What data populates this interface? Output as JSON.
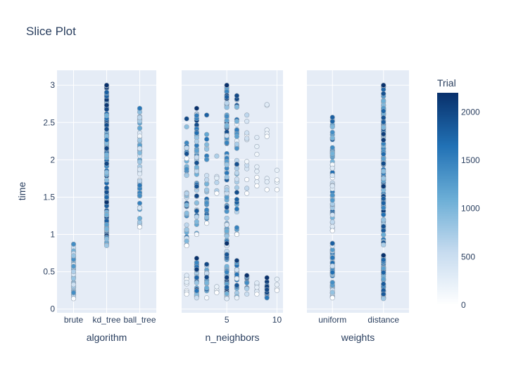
{
  "chart_data": {
    "type": "scatter",
    "title": "Slice Plot",
    "ylabel": "time",
    "ylim": [
      -0.05,
      3.2
    ],
    "yticks": [
      0,
      0.5,
      1,
      1.5,
      2,
      2.5,
      3
    ],
    "colorbar": {
      "title": "Trial",
      "min": 0,
      "max": 2200,
      "ticks": [
        0,
        500,
        1000,
        1500,
        2000
      ],
      "colorscale": [
        "#ffffff",
        "#c6dbef",
        "#6baed6",
        "#2171b5",
        "#08306b"
      ]
    },
    "panels": [
      {
        "xlabel": "algorithm",
        "x_type": "category",
        "categories": [
          "brute",
          "kd_tree",
          "ball_tree"
        ],
        "clusters": [
          {
            "x": "brute",
            "y_min": 0.14,
            "y_max": 0.87,
            "trial_min": 50,
            "trial_max": 1400,
            "count": 60
          },
          {
            "x": "kd_tree",
            "y_min": 0.85,
            "y_max": 3.0,
            "trial_min": 800,
            "trial_max": 2200,
            "count": 150
          },
          {
            "x": "ball_tree",
            "y_min": 1.1,
            "y_max": 2.69,
            "trial_min": 0,
            "trial_max": 1600,
            "count": 60
          }
        ]
      },
      {
        "xlabel": "n_neighbors",
        "x_type": "linear",
        "xlim": [
          0.5,
          10.6
        ],
        "xticks": [
          5,
          10
        ],
        "clusters": [
          {
            "x": 1,
            "y_min": 0.85,
            "y_max": 2.55,
            "trial_min": 0,
            "trial_max": 2000,
            "count": 45
          },
          {
            "x": 1,
            "y_min": 0.2,
            "y_max": 0.45,
            "trial_min": 0,
            "trial_max": 300,
            "count": 6
          },
          {
            "x": 2,
            "y_min": 1.0,
            "y_max": 2.69,
            "trial_min": 100,
            "trial_max": 2200,
            "count": 50
          },
          {
            "x": 2,
            "y_min": 0.15,
            "y_max": 0.68,
            "trial_min": 500,
            "trial_max": 2200,
            "count": 30
          },
          {
            "x": 3,
            "y_min": 1.15,
            "y_max": 2.6,
            "trial_min": 0,
            "trial_max": 1800,
            "count": 25
          },
          {
            "x": 3,
            "y_min": 0.15,
            "y_max": 0.6,
            "trial_min": 100,
            "trial_max": 2000,
            "count": 20
          },
          {
            "x": 4,
            "y_min": 1.55,
            "y_max": 2.05,
            "trial_min": 0,
            "trial_max": 700,
            "count": 4
          },
          {
            "x": 4,
            "y_min": 0.22,
            "y_max": 0.3,
            "trial_min": 0,
            "trial_max": 200,
            "count": 2
          },
          {
            "x": 5,
            "y_min": 0.85,
            "y_max": 3.0,
            "trial_min": 300,
            "trial_max": 2200,
            "count": 90
          },
          {
            "x": 5,
            "y_min": 0.14,
            "y_max": 0.88,
            "trial_min": 300,
            "trial_max": 2200,
            "count": 45
          },
          {
            "x": 6,
            "y_min": 1.0,
            "y_max": 2.86,
            "trial_min": 0,
            "trial_max": 2000,
            "count": 40
          },
          {
            "x": 6,
            "y_min": 0.15,
            "y_max": 0.65,
            "trial_min": 200,
            "trial_max": 2100,
            "count": 25
          },
          {
            "x": 7,
            "y_min": 1.55,
            "y_max": 2.6,
            "trial_min": 0,
            "trial_max": 600,
            "count": 10
          },
          {
            "x": 7,
            "y_min": 0.2,
            "y_max": 0.45,
            "trial_min": 500,
            "trial_max": 2200,
            "count": 12
          },
          {
            "x": 8,
            "y_min": 1.65,
            "y_max": 2.3,
            "trial_min": 0,
            "trial_max": 300,
            "count": 6
          },
          {
            "x": 8,
            "y_min": 0.2,
            "y_max": 0.35,
            "trial_min": 0,
            "trial_max": 300,
            "count": 4
          },
          {
            "x": 9,
            "y_min": 1.6,
            "y_max": 2.74,
            "trial_min": 0,
            "trial_max": 300,
            "count": 6
          },
          {
            "x": 9,
            "y_min": 0.15,
            "y_max": 0.42,
            "trial_min": 1600,
            "trial_max": 2200,
            "count": 12
          },
          {
            "x": 10,
            "y_min": 1.6,
            "y_max": 1.86,
            "trial_min": 0,
            "trial_max": 200,
            "count": 2
          },
          {
            "x": 10,
            "y_min": 0.25,
            "y_max": 0.4,
            "trial_min": 0,
            "trial_max": 200,
            "count": 2
          }
        ]
      },
      {
        "xlabel": "weights",
        "x_type": "category",
        "categories": [
          "uniform",
          "distance"
        ],
        "clusters": [
          {
            "x": "uniform",
            "y_min": 1.05,
            "y_max": 2.57,
            "trial_min": 0,
            "trial_max": 1800,
            "count": 60
          },
          {
            "x": "uniform",
            "y_min": 0.15,
            "y_max": 0.88,
            "trial_min": 0,
            "trial_max": 1800,
            "count": 60
          },
          {
            "x": "distance",
            "y_min": 0.86,
            "y_max": 3.0,
            "trial_min": 700,
            "trial_max": 2200,
            "count": 130
          },
          {
            "x": "distance",
            "y_min": 0.14,
            "y_max": 0.72,
            "trial_min": 800,
            "trial_max": 2200,
            "count": 50
          }
        ]
      }
    ]
  }
}
